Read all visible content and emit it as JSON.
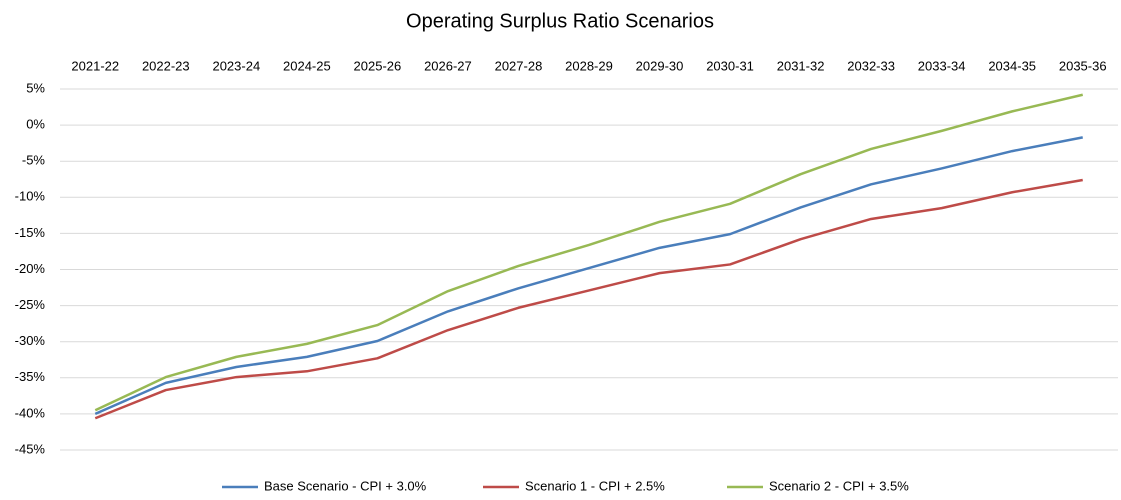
{
  "chart_data": {
    "type": "line",
    "title": "Operating Surplus Ratio Scenarios",
    "categories": [
      "2021-22",
      "2022-23",
      "2023-24",
      "2024-25",
      "2025-26",
      "2026-27",
      "2027-28",
      "2028-29",
      "2029-30",
      "2030-31",
      "2031-32",
      "2032-33",
      "2033-34",
      "2034-35",
      "2035-36"
    ],
    "series": [
      {
        "name": "Base Scenario - CPI + 3.0%",
        "color": "#4a7ebb",
        "values": [
          -40,
          -35.7,
          -33.5,
          -32.1,
          -29.9,
          -25.8,
          -22.6,
          -19.8,
          -17,
          -15.1,
          -11.4,
          -8.2,
          -6,
          -3.6,
          -1.7
        ]
      },
      {
        "name": "Scenario 1 - CPI  + 2.5%",
        "color": "#be4b48",
        "values": [
          -40.6,
          -36.7,
          -34.9,
          -34.1,
          -32.3,
          -28.4,
          -25.3,
          -22.9,
          -20.5,
          -19.3,
          -15.8,
          -13,
          -11.5,
          -9.3,
          -7.6
        ]
      },
      {
        "name": "Scenario 2 - CPI + 3.5%",
        "color": "#98b954",
        "values": [
          -39.5,
          -34.9,
          -32.1,
          -30.3,
          -27.7,
          -23,
          -19.5,
          -16.6,
          -13.4,
          -10.9,
          -6.8,
          -3.3,
          -0.8,
          1.9,
          4.2
        ]
      }
    ],
    "ylim": [
      -45,
      5
    ],
    "yticks": [
      {
        "value": -45,
        "label": "-45%"
      },
      {
        "value": -40,
        "label": "-40%"
      },
      {
        "value": -35,
        "label": "-35%"
      },
      {
        "value": -30,
        "label": "-30%"
      },
      {
        "value": -25,
        "label": "-25%"
      },
      {
        "value": -20,
        "label": "-20%"
      },
      {
        "value": -15,
        "label": "-15%"
      },
      {
        "value": -10,
        "label": "-10%"
      },
      {
        "value": -5,
        "label": "-5%"
      },
      {
        "value": 0,
        "label": "0%"
      },
      {
        "value": 5,
        "label": "5%"
      }
    ],
    "grid": true,
    "legend": "bottom"
  }
}
